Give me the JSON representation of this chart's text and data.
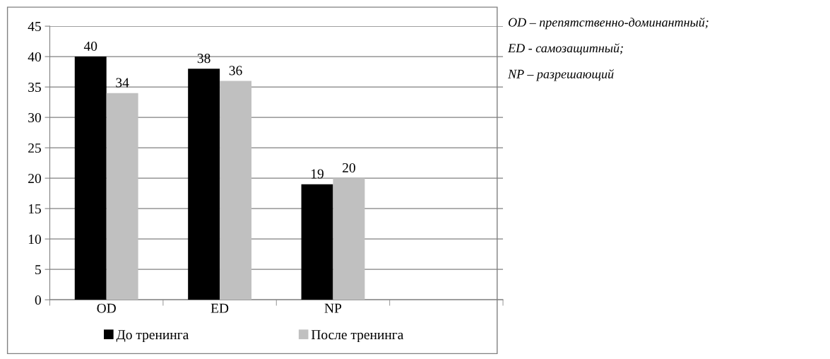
{
  "chart_data": {
    "type": "bar",
    "categories": [
      "OD",
      "ED",
      "NP",
      null
    ],
    "series": [
      {
        "name": "До тренинга",
        "color": "#000000",
        "values": [
          40,
          38,
          19,
          null
        ]
      },
      {
        "name": "После тренинга",
        "color": "#c0c0c0",
        "values": [
          34,
          36,
          20,
          null
        ]
      }
    ],
    "ylim": [
      0,
      45
    ],
    "yticks": [
      0,
      5,
      10,
      15,
      20,
      25,
      30,
      35,
      40,
      45
    ],
    "grid": "y",
    "legend": "bottom",
    "data_labels": true,
    "annotations": [
      "OD – препятственно-доминантный;",
      "ED - самозащитный;",
      "NP – разрешающий"
    ]
  }
}
